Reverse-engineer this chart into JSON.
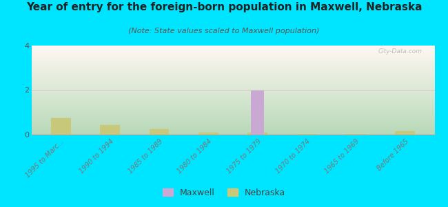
{
  "title": "Year of entry for the foreign-born population in Maxwell, Nebraska",
  "subtitle": "(Note: State values scaled to Maxwell population)",
  "categories": [
    "1995 to Marc...",
    "1990 to 1994",
    "1985 to 1989",
    "1980 to 1984",
    "1975 to 1979",
    "1970 to 1974",
    "1965 to 1969",
    "Before 1965"
  ],
  "maxwell_values": [
    0,
    0,
    0,
    0,
    2,
    0,
    0,
    0
  ],
  "nebraska_values": [
    0.75,
    0.42,
    0.25,
    0.1,
    0.1,
    0.04,
    0.02,
    0.16
  ],
  "maxwell_color": "#c9a8d4",
  "nebraska_color": "#c8c87a",
  "outer_bg": "#00e5ff",
  "plot_bg_bottom": "#b8d8b8",
  "plot_bg_top": "#f0f8f0",
  "ylim": [
    0,
    4
  ],
  "yticks": [
    0,
    2,
    4
  ],
  "bar_width": 0.5,
  "watermark": "City-Data.com",
  "legend_maxwell": "Maxwell",
  "legend_nebraska": "Nebraska",
  "title_fontsize": 11,
  "subtitle_fontsize": 8,
  "tick_label_fontsize": 7,
  "ytick_fontsize": 8
}
